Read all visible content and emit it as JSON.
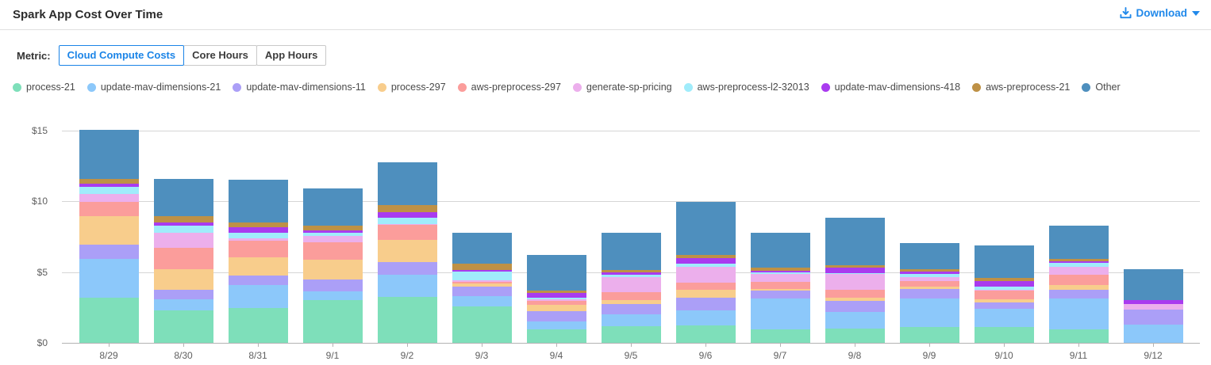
{
  "header": {
    "title": "Spark App Cost Over Time",
    "download_label": "Download"
  },
  "metric_bar": {
    "label": "Metric:",
    "options": [
      {
        "label": "Cloud Compute Costs",
        "selected": true
      },
      {
        "label": "Core Hours",
        "selected": false
      },
      {
        "label": "App Hours",
        "selected": false
      }
    ]
  },
  "colors": {
    "accent_blue": "#1b84e7",
    "axis_line": "#b3b3b3",
    "gridline": "#d6d6d6"
  },
  "chart_data": {
    "type": "bar",
    "stacked": true,
    "title": "Spark App Cost Over Time",
    "xlabel": "",
    "ylabel": "",
    "ylim": [
      0,
      15
    ],
    "yticks": [
      0,
      5,
      10,
      15
    ],
    "ytick_labels": [
      "$0",
      "$5",
      "$10",
      "$15"
    ],
    "grid": true,
    "legend_position": "top",
    "categories": [
      "8/29",
      "8/30",
      "8/31",
      "9/1",
      "9/2",
      "9/3",
      "9/4",
      "9/5",
      "9/6",
      "9/7",
      "9/8",
      "9/9",
      "9/10",
      "9/11",
      "9/12"
    ],
    "series": [
      {
        "name": "process-21",
        "color": "#7EDFBA",
        "values": [
          3.21,
          2.28,
          2.47,
          3.03,
          3.25,
          2.58,
          0.93,
          1.15,
          1.21,
          0.97,
          1.03,
          1.12,
          1.12,
          0.97,
          0.0
        ]
      },
      {
        "name": "update-mav-dimensions-21",
        "color": "#8CC8FA",
        "values": [
          2.7,
          0.8,
          1.64,
          0.61,
          1.58,
          0.74,
          0.56,
          0.87,
          1.07,
          2.17,
          1.17,
          2.02,
          1.27,
          2.17,
          1.27
        ]
      },
      {
        "name": "update-mav-dimensions-11",
        "color": "#AB9FF7",
        "values": [
          1.05,
          0.69,
          0.67,
          0.84,
          0.87,
          0.64,
          0.75,
          0.74,
          0.93,
          0.56,
          0.75,
          0.69,
          0.45,
          0.63,
          1.06
        ]
      },
      {
        "name": "process-297",
        "color": "#F8CD8C",
        "values": [
          2.02,
          1.46,
          1.24,
          1.41,
          1.6,
          0.26,
          0.45,
          0.27,
          0.56,
          0.13,
          0.22,
          0.13,
          0.24,
          0.34,
          0.0
        ]
      },
      {
        "name": "aws-preprocess-297",
        "color": "#FB9D9B",
        "values": [
          0.97,
          1.5,
          1.19,
          1.21,
          1.03,
          0.11,
          0.26,
          0.56,
          0.51,
          0.47,
          0.56,
          0.43,
          0.62,
          0.71,
          0.0
        ]
      },
      {
        "name": "generate-sp-pricing",
        "color": "#ECAFEC",
        "values": [
          0.56,
          1.08,
          0.19,
          0.47,
          0.05,
          0.09,
          0.15,
          1.08,
          1.12,
          0.56,
          1.12,
          0.28,
          0.07,
          0.56,
          0.43
        ]
      },
      {
        "name": "aws-preprocess-l2-32013",
        "color": "#A0ECFB",
        "values": [
          0.52,
          0.5,
          0.37,
          0.24,
          0.47,
          0.6,
          0.11,
          0.15,
          0.22,
          0.11,
          0.07,
          0.19,
          0.22,
          0.26,
          0.0
        ]
      },
      {
        "name": "update-mav-dimensions-418",
        "color": "#A93BEF",
        "values": [
          0.23,
          0.22,
          0.41,
          0.15,
          0.41,
          0.15,
          0.34,
          0.15,
          0.35,
          0.15,
          0.39,
          0.19,
          0.39,
          0.11,
          0.26
        ]
      },
      {
        "name": "aws-preprocess-21",
        "color": "#BE9146",
        "values": [
          0.33,
          0.43,
          0.34,
          0.35,
          0.5,
          0.45,
          0.15,
          0.19,
          0.22,
          0.22,
          0.19,
          0.15,
          0.21,
          0.19,
          0.0
        ]
      },
      {
        "name": "Other",
        "color": "#4E8FBE",
        "values": [
          3.45,
          2.65,
          3.01,
          2.62,
          3.02,
          2.14,
          2.54,
          2.65,
          3.79,
          2.46,
          3.32,
          1.87,
          2.32,
          2.32,
          2.18
        ]
      }
    ]
  }
}
